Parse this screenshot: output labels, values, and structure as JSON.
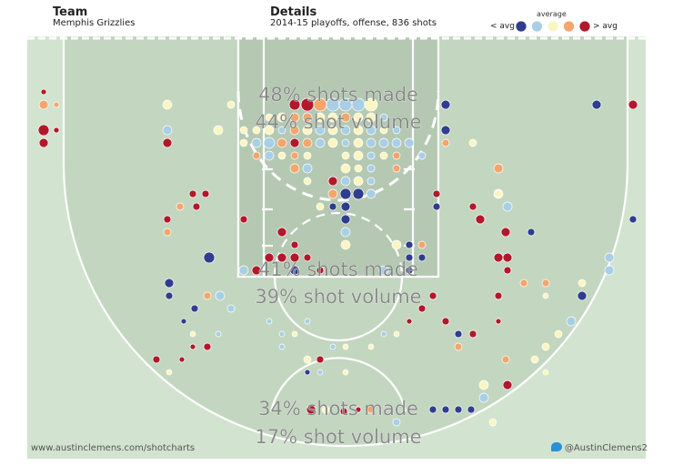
{
  "header": {
    "team_label": "Team",
    "team_value": "Memphis Grizzlies",
    "details_label": "Details",
    "details_value": "2014-15 playoffs, offense, 836 shots"
  },
  "legend": {
    "title": "average",
    "low_label": "< avg",
    "high_label": "> avg",
    "colors": [
      "#2f3d8f",
      "#a8cfe6",
      "#fbf5c2",
      "#f3a56b",
      "#b2182b"
    ]
  },
  "footer": {
    "left": "www.austinclemens.com/shotcharts",
    "right": "@AustinClemens2"
  },
  "chart_data": {
    "type": "scatter",
    "zones": [
      {
        "id": "paint",
        "made": "48% shots made",
        "volume": "44% shot volume"
      },
      {
        "id": "midrange",
        "made": "41% shots made",
        "volume": "39% shot volume"
      },
      {
        "id": "three",
        "made": "34% shots made",
        "volume": "17% shot volume"
      }
    ],
    "points": [
      [
        338,
        115,
        7,
        4
      ],
      [
        352,
        115,
        7,
        3
      ],
      [
        366,
        115,
        7,
        1
      ],
      [
        380,
        115,
        7,
        1
      ],
      [
        394,
        115,
        7,
        1
      ],
      [
        408,
        115,
        7,
        2
      ],
      [
        324,
        115,
        6,
        4
      ],
      [
        310,
        129,
        5,
        2
      ],
      [
        324,
        129,
        5,
        3
      ],
      [
        338,
        129,
        5,
        3
      ],
      [
        352,
        129,
        5,
        2
      ],
      [
        366,
        129,
        5,
        2
      ],
      [
        380,
        129,
        5,
        3
      ],
      [
        394,
        129,
        5,
        2
      ],
      [
        408,
        129,
        5,
        2
      ],
      [
        422,
        129,
        4,
        1
      ],
      [
        296,
        129,
        4,
        2
      ],
      [
        282,
        143,
        4,
        2
      ],
      [
        296,
        143,
        5,
        2
      ],
      [
        310,
        143,
        4,
        1
      ],
      [
        324,
        143,
        5,
        3
      ],
      [
        338,
        143,
        5,
        2
      ],
      [
        352,
        143,
        5,
        1
      ],
      [
        366,
        143,
        5,
        2
      ],
      [
        380,
        143,
        5,
        1
      ],
      [
        394,
        143,
        5,
        2
      ],
      [
        408,
        143,
        5,
        1
      ],
      [
        422,
        143,
        4,
        2
      ],
      [
        436,
        143,
        4,
        1
      ],
      [
        268,
        143,
        4,
        2
      ],
      [
        282,
        157,
        5,
        1
      ],
      [
        296,
        157,
        6,
        1
      ],
      [
        310,
        157,
        5,
        3
      ],
      [
        324,
        157,
        5,
        4
      ],
      [
        338,
        157,
        5,
        3
      ],
      [
        352,
        157,
        5,
        1
      ],
      [
        366,
        157,
        5,
        2
      ],
      [
        380,
        157,
        4,
        1
      ],
      [
        394,
        157,
        5,
        2
      ],
      [
        408,
        157,
        5,
        1
      ],
      [
        422,
        157,
        5,
        1
      ],
      [
        436,
        157,
        5,
        1
      ],
      [
        450,
        157,
        5,
        1
      ],
      [
        282,
        171,
        4,
        3
      ],
      [
        296,
        171,
        5,
        1
      ],
      [
        310,
        171,
        4,
        2
      ],
      [
        324,
        171,
        4,
        3
      ],
      [
        338,
        171,
        4,
        2
      ],
      [
        380,
        171,
        4,
        2
      ],
      [
        394,
        171,
        5,
        2
      ],
      [
        408,
        171,
        4,
        1
      ],
      [
        422,
        171,
        4,
        2
      ],
      [
        436,
        171,
        4,
        3
      ],
      [
        464,
        171,
        4,
        1
      ],
      [
        324,
        185,
        5,
        3
      ],
      [
        338,
        185,
        5,
        1
      ],
      [
        380,
        185,
        5,
        2
      ],
      [
        394,
        185,
        4,
        2
      ],
      [
        408,
        185,
        4,
        1
      ],
      [
        436,
        185,
        4,
        3
      ],
      [
        338,
        199,
        4,
        2
      ],
      [
        366,
        199,
        5,
        4
      ],
      [
        380,
        199,
        5,
        1
      ],
      [
        394,
        199,
        5,
        2
      ],
      [
        408,
        199,
        4,
        1
      ],
      [
        366,
        213,
        5,
        3
      ],
      [
        380,
        213,
        6,
        0
      ],
      [
        394,
        213,
        6,
        0
      ],
      [
        408,
        213,
        5,
        1
      ],
      [
        352,
        227,
        4,
        2
      ],
      [
        380,
        227,
        5,
        0
      ],
      [
        366,
        227,
        4,
        0
      ],
      [
        380,
        241,
        5,
        0
      ],
      [
        380,
        255,
        5,
        1
      ],
      [
        380,
        269,
        5,
        2
      ],
      [
        436,
        269,
        5,
        2
      ],
      [
        450,
        269,
        4,
        0
      ],
      [
        464,
        269,
        4,
        3
      ],
      [
        450,
        283,
        4,
        0
      ],
      [
        464,
        283,
        4,
        0
      ],
      [
        450,
        297,
        4,
        0
      ],
      [
        422,
        297,
        5,
        1
      ],
      [
        352,
        297,
        4,
        4
      ],
      [
        296,
        283,
        5,
        4
      ],
      [
        310,
        283,
        5,
        4
      ],
      [
        324,
        283,
        5,
        4
      ],
      [
        338,
        283,
        4,
        4
      ],
      [
        282,
        297,
        5,
        4
      ],
      [
        324,
        297,
        5,
        0
      ],
      [
        268,
        297,
        5,
        1
      ],
      [
        310,
        255,
        5,
        4
      ],
      [
        268,
        241,
        4,
        4
      ],
      [
        184,
        241,
        4,
        4
      ],
      [
        184,
        255,
        4,
        3
      ],
      [
        212,
        213,
        4,
        4
      ],
      [
        226,
        213,
        4,
        4
      ],
      [
        198,
        227,
        4,
        3
      ],
      [
        216,
        227,
        4,
        4
      ],
      [
        324,
        269,
        4,
        4
      ],
      [
        480,
        213,
        4,
        4
      ],
      [
        480,
        227,
        4,
        0
      ],
      [
        520,
        227,
        4,
        4
      ],
      [
        548,
        213,
        5,
        2
      ],
      [
        558,
        227,
        5,
        1
      ],
      [
        528,
        241,
        5,
        4
      ],
      [
        556,
        255,
        5,
        4
      ],
      [
        584,
        255,
        4,
        0
      ],
      [
        184,
        143,
        5,
        1
      ],
      [
        184,
        157,
        5,
        4
      ],
      [
        240,
        143,
        5,
        2
      ],
      [
        268,
        157,
        4,
        2
      ],
      [
        184,
        115,
        5,
        2
      ],
      [
        254,
        115,
        4,
        2
      ],
      [
        48,
        101,
        3,
        4
      ],
      [
        48,
        115,
        5,
        3
      ],
      [
        62,
        115,
        3,
        3
      ],
      [
        48,
        143,
        6,
        4
      ],
      [
        48,
        157,
        5,
        4
      ],
      [
        62,
        143,
        3,
        4
      ],
      [
        490,
        115,
        5,
        0
      ],
      [
        490,
        143,
        5,
        0
      ],
      [
        490,
        157,
        4,
        3
      ],
      [
        520,
        157,
        4,
        2
      ],
      [
        548,
        185,
        5,
        3
      ],
      [
        548,
        213,
        4,
        2
      ],
      [
        656,
        115,
        5,
        0
      ],
      [
        696,
        115,
        5,
        4
      ],
      [
        696,
        241,
        4,
        0
      ],
      [
        230,
        283,
        6,
        0
      ],
      [
        186,
        311,
        5,
        0
      ],
      [
        186,
        325,
        4,
        0
      ],
      [
        214,
        339,
        4,
        0
      ],
      [
        228,
        325,
        4,
        3
      ],
      [
        242,
        325,
        5,
        1
      ],
      [
        202,
        353,
        3,
        0
      ],
      [
        212,
        367,
        3,
        2
      ],
      [
        240,
        367,
        3,
        1
      ],
      [
        254,
        339,
        4,
        1
      ],
      [
        548,
        283,
        5,
        4
      ],
      [
        558,
        283,
        5,
        4
      ],
      [
        558,
        297,
        4,
        4
      ],
      [
        576,
        311,
        4,
        3
      ],
      [
        600,
        311,
        4,
        3
      ],
      [
        600,
        325,
        3,
        2
      ],
      [
        548,
        325,
        4,
        4
      ],
      [
        670,
        283,
        5,
        1
      ],
      [
        670,
        297,
        5,
        1
      ],
      [
        640,
        311,
        4,
        2
      ],
      [
        640,
        325,
        5,
        0
      ],
      [
        628,
        353,
        5,
        1
      ],
      [
        614,
        367,
        4,
        2
      ],
      [
        600,
        381,
        4,
        2
      ],
      [
        588,
        395,
        4,
        2
      ],
      [
        600,
        409,
        3,
        2
      ],
      [
        556,
        395,
        4,
        3
      ],
      [
        548,
        353,
        3,
        4
      ],
      [
        296,
        353,
        3,
        1
      ],
      [
        310,
        367,
        3,
        1
      ],
      [
        310,
        381,
        3,
        1
      ],
      [
        324,
        367,
        3,
        2
      ],
      [
        338,
        353,
        3,
        1
      ],
      [
        366,
        381,
        3,
        1
      ],
      [
        380,
        381,
        3,
        2
      ],
      [
        408,
        381,
        3,
        2
      ],
      [
        422,
        367,
        3,
        1
      ],
      [
        436,
        367,
        3,
        2
      ],
      [
        450,
        353,
        3,
        4
      ],
      [
        464,
        339,
        4,
        4
      ],
      [
        476,
        325,
        4,
        4
      ],
      [
        490,
        353,
        4,
        4
      ],
      [
        504,
        367,
        4,
        0
      ],
      [
        504,
        381,
        4,
        3
      ],
      [
        520,
        367,
        4,
        4
      ],
      [
        172,
        395,
        4,
        4
      ],
      [
        186,
        409,
        3,
        2
      ],
      [
        200,
        395,
        3,
        4
      ],
      [
        212,
        381,
        3,
        4
      ],
      [
        228,
        381,
        4,
        4
      ],
      [
        338,
        395,
        4,
        2
      ],
      [
        352,
        395,
        4,
        4
      ],
      [
        338,
        409,
        3,
        0
      ],
      [
        352,
        409,
        3,
        1
      ],
      [
        380,
        409,
        3,
        2
      ],
      [
        342,
        450,
        5,
        4
      ],
      [
        358,
        450,
        4,
        2
      ],
      [
        378,
        452,
        4,
        4
      ],
      [
        394,
        450,
        3,
        4
      ],
      [
        408,
        450,
        4,
        3
      ],
      [
        436,
        464,
        4,
        1
      ],
      [
        476,
        450,
        4,
        0
      ],
      [
        490,
        450,
        4,
        0
      ],
      [
        504,
        450,
        4,
        0
      ],
      [
        518,
        450,
        4,
        0
      ],
      [
        532,
        437,
        5,
        1
      ],
      [
        532,
        423,
        5,
        2
      ],
      [
        558,
        423,
        5,
        4
      ],
      [
        542,
        464,
        4,
        2
      ]
    ]
  }
}
